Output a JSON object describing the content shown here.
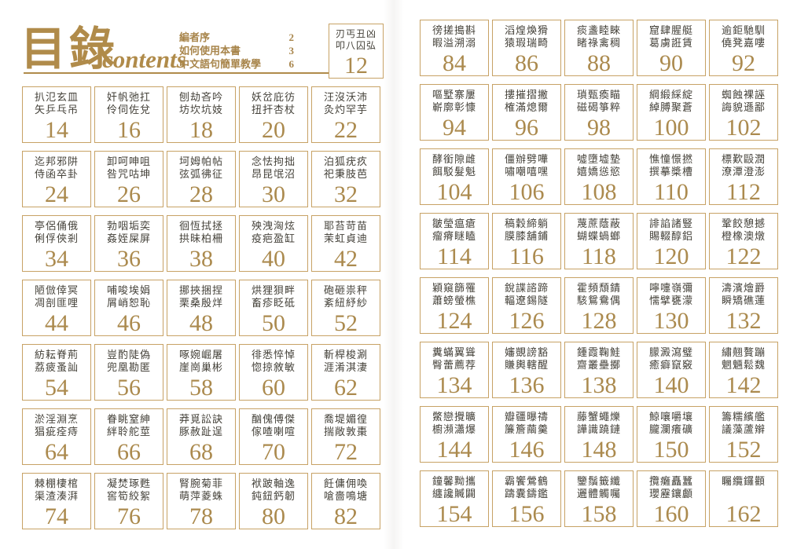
{
  "header": {
    "title_cn": "目錄",
    "title_en": "contents",
    "front_matter": [
      {
        "label": "編者序",
        "page": "2"
      },
      {
        "label": "如何使用本書",
        "page": "3"
      },
      {
        "label": "中文語句簡單教學",
        "page": "6"
      }
    ],
    "first_entry": {
      "chars": "刃丐丑凶\n叩八囚弘",
      "page": "12"
    }
  },
  "toc": {
    "left_entries": [
      {
        "page": "14",
        "chars": "扒氾玄皿\n矢乒乓吊"
      },
      {
        "page": "16",
        "chars": "奸帆弛扛\n伶伺佐兌"
      },
      {
        "page": "18",
        "chars": "刨劫吝吟\n坊坎坑妓"
      },
      {
        "page": "20",
        "chars": "妖岔庇彷\n扭扞杏杖"
      },
      {
        "page": "22",
        "chars": "汪沒沃沛\n灸灼罕芋"
      },
      {
        "page": "24",
        "chars": "迄邦邪阱\n侍函卒卦"
      },
      {
        "page": "26",
        "chars": "卸呵呻咀\n咎咒咕坤"
      },
      {
        "page": "28",
        "chars": "坷姆帕帖\n弦弧彿征"
      },
      {
        "page": "30",
        "chars": "念怯拘拙\n昂昆氓沼"
      },
      {
        "page": "32",
        "chars": "泊狐疣疚\n祀秉肢芭"
      },
      {
        "page": "34",
        "chars": "亭侶俑俄\n俐俘俠剎"
      },
      {
        "page": "36",
        "chars": "勃咽垢奕\n姦姪屎屏"
      },
      {
        "page": "38",
        "chars": "徊恆拭拯\n拱昧柏柵"
      },
      {
        "page": "40",
        "chars": "殃洩洶炫\n疫疤盈缸"
      },
      {
        "page": "42",
        "chars": "耶苔苛苗\n茉虹貞迪"
      },
      {
        "page": "44",
        "chars": "陋倣倖冥\n凋剖匪哩"
      },
      {
        "page": "46",
        "chars": "哺唆埃娟\n屑峭恕恥"
      },
      {
        "page": "48",
        "chars": "挪挾捆捏\n栗桑殷烊"
      },
      {
        "page": "50",
        "chars": "烘狸狽畔\n畜疹眨砥"
      },
      {
        "page": "52",
        "chars": "砲砸祟秤\n紊紐紓紗"
      },
      {
        "page": "54",
        "chars": "紡耘脊荊\n荔疲蚤訕"
      },
      {
        "page": "56",
        "chars": "豈酌陡偽\n兜凰勘匿"
      },
      {
        "page": "58",
        "chars": "啄婉崛屠\n崖崗巢彬"
      },
      {
        "page": "60",
        "chars": "徘悉悴悼\n惚掠敘敏"
      },
      {
        "page": "62",
        "chars": "斬桿梭涮\n涯淆淇淒"
      },
      {
        "page": "64",
        "chars": "淤淫淵烹\n猖疵痊痔"
      },
      {
        "page": "66",
        "chars": "眷眺窒紳\n絆聆舵莖"
      },
      {
        "page": "68",
        "chars": "莽覓訟訣\n豚赦趾逞"
      },
      {
        "page": "70",
        "chars": "酗傀傅傑\n傢喳喇喧"
      },
      {
        "page": "72",
        "chars": "喬堤媚徨\n揣敞敦棗"
      },
      {
        "page": "74",
        "chars": "棘棚棲棺\n渠渣湊湃"
      },
      {
        "page": "76",
        "chars": "凝焚琢甦\n窖筍絞絮"
      },
      {
        "page": "78",
        "chars": "腎腕菊菲\n萌萍菱蛛"
      },
      {
        "page": "80",
        "chars": "袱跛軸逸\n鈍鈕鈣韌"
      },
      {
        "page": "82",
        "chars": "飪傭佣喚\n嗆嗇鳴塘"
      }
    ],
    "right_entries": [
      {
        "page": "84",
        "chars": "徬搓搗斟\n暇溢溯溺"
      },
      {
        "page": "86",
        "chars": "滔煌煥猾\n猿瑕瑞畸"
      },
      {
        "page": "88",
        "chars": "痰盞睦睞\n睹祿禽稠"
      },
      {
        "page": "90",
        "chars": "窟肆腥艇\n葛虜誑賃"
      },
      {
        "page": "92",
        "chars": "逾鉅馳馴\n僥凳嘉嘍"
      },
      {
        "page": "94",
        "chars": "嘔墅寨屢\n嶄廓彰慷"
      },
      {
        "page": "96",
        "chars": "摟摧摺撇\n榷滿熄爾"
      },
      {
        "page": "98",
        "chars": "瑣甄瘓瞄\n磁碣箏粹"
      },
      {
        "page": "100",
        "chars": "綱緞綵綻\n綽膊聚蒼"
      },
      {
        "page": "102",
        "chars": "蜘蝕裸誣\n誨貌遜鄙"
      },
      {
        "page": "104",
        "chars": "酵銜隙雌\n餌駁髮魁"
      },
      {
        "page": "106",
        "chars": "僵辦劈嘩\n嘯嘲嘻嘿"
      },
      {
        "page": "108",
        "chars": "噓墮墟墊\n嬉嬌慫慾"
      },
      {
        "page": "110",
        "chars": "憔憧憬撚\n撰摹槳槽"
      },
      {
        "page": "112",
        "chars": "標歎毆潤\n潦潭澄澎"
      },
      {
        "page": "114",
        "chars": "皺瑩瘟瘡\n瘤瘠瞇瞌"
      },
      {
        "page": "116",
        "chars": "稿穀締躺\n膜膝舖鋪"
      },
      {
        "page": "118",
        "chars": "蔑蔗蔭蔽\n蝴蝶蝸螂"
      },
      {
        "page": "120",
        "chars": "誹諂諸豎\n賜輟醇鋁"
      },
      {
        "page": "122",
        "chars": "鞏餃憩撼\n橙橡澳燉"
      },
      {
        "page": "124",
        "chars": "穎窺篩罹\n蕭螃螢樵"
      },
      {
        "page": "126",
        "chars": "銳諜諮蹄\n輻遼錫隧"
      },
      {
        "page": "128",
        "chars": "霍頻頹錆\n駭鴛鴦偶"
      },
      {
        "page": "130",
        "chars": "嚀嚏嶺彌\n懦擘甕濛"
      },
      {
        "page": "132",
        "chars": "濤濱燴爵\n瞬矯礁蓮"
      },
      {
        "page": "134",
        "chars": "糞蟎翼聳\n臀蕾薦荐"
      },
      {
        "page": "136",
        "chars": "嬸覬謗豁\n賺輿轄醒"
      },
      {
        "page": "138",
        "chars": "鍾霞鞠鮭\n齋叢壘擲"
      },
      {
        "page": "140",
        "chars": "朦澱瀉璧\n癒癖竄竅"
      },
      {
        "page": "142",
        "chars": "繡翹贅蹦\n魍魎鬆魏"
      },
      {
        "page": "144",
        "chars": "鱉戀攪曠\n櫥瀕瀟爆"
      },
      {
        "page": "146",
        "chars": "瓣疆曝禱\n簾簷繭羹"
      },
      {
        "page": "148",
        "chars": "藤蟹蠅爍\n譁識蹺鏈"
      },
      {
        "page": "150",
        "chars": "鯨嚷嚼壤\n朧瀾癢礦"
      },
      {
        "page": "152",
        "chars": "籌糯繽艦\n議藻蘆辮"
      },
      {
        "page": "154",
        "chars": "鐘馨黝攜\n纏讒贓闢"
      },
      {
        "page": "156",
        "chars": "霸饗鶯鶴\n躊囊鑄鑑"
      },
      {
        "page": "158",
        "chars": "鑒鬚籤纖\n邐體觸囑"
      },
      {
        "page": "160",
        "chars": "攬癱矗蠶\n瓔靂鑲顱"
      },
      {
        "page": "162",
        "chars": "矚纜鑼顴"
      }
    ]
  },
  "colors": {
    "accent_gold": "#b08b4a",
    "number_gold": "#ab8a4e",
    "box_border": "#c7a265",
    "character_text": "#45423a"
  }
}
